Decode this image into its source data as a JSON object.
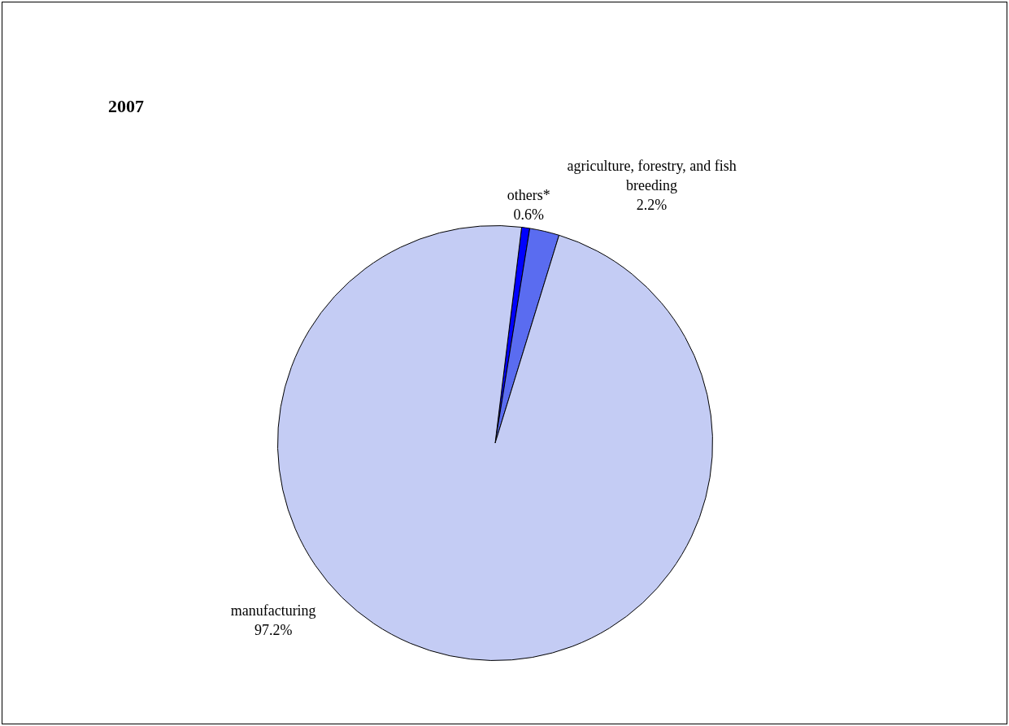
{
  "chart_data": {
    "type": "pie",
    "title": "2007",
    "categories": [
      "others*",
      "agriculture, forestry, and fish breeding",
      "manufacturing"
    ],
    "values": [
      0.6,
      2.2,
      97.2
    ],
    "value_labels": [
      "0.6%",
      "2.2%",
      "97.2%"
    ],
    "colors": [
      "#0000ff",
      "#5a6cf0",
      "#c4ccf4"
    ],
    "legend": false
  }
}
